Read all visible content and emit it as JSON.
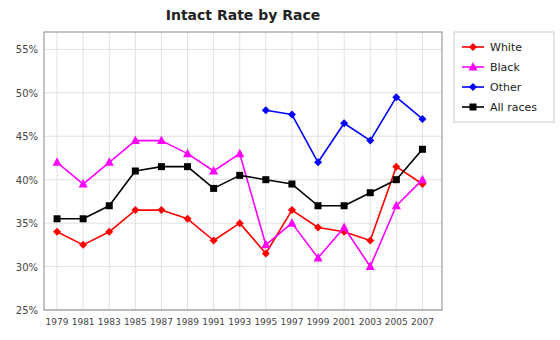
{
  "chart_data": {
    "type": "line",
    "title": "Intact Rate by Race",
    "x": [
      1979,
      1981,
      1983,
      1985,
      1987,
      1989,
      1991,
      1993,
      1995,
      1997,
      1999,
      2001,
      2003,
      2005,
      2007
    ],
    "series": [
      {
        "name": "White",
        "color": "#ff0000",
        "marker": "diamond",
        "values": [
          34.0,
          32.5,
          34.0,
          36.5,
          36.5,
          35.5,
          33.0,
          35.0,
          31.5,
          36.5,
          34.5,
          34.0,
          33.0,
          41.5,
          39.5
        ]
      },
      {
        "name": "Black",
        "color": "#ff00ff",
        "marker": "triangle",
        "values": [
          42.0,
          39.5,
          42.0,
          44.5,
          44.5,
          43.0,
          41.0,
          43.0,
          32.5,
          35.0,
          31.0,
          34.5,
          30.0,
          37.0,
          40.0
        ]
      },
      {
        "name": "Other",
        "color": "#0000ff",
        "marker": "diamond",
        "values": [
          null,
          null,
          null,
          null,
          null,
          null,
          null,
          null,
          48.0,
          47.5,
          42.0,
          46.5,
          44.5,
          49.5,
          47.0
        ]
      },
      {
        "name": "All races",
        "color": "#000000",
        "marker": "square",
        "values": [
          35.5,
          35.5,
          37.0,
          41.0,
          41.5,
          41.5,
          39.0,
          40.5,
          40.0,
          39.5,
          37.0,
          37.0,
          38.5,
          40.0,
          43.5
        ]
      }
    ],
    "xlim": [
      1978,
      2008.5
    ],
    "xticks": [
      1979,
      1981,
      1983,
      1985,
      1987,
      1989,
      1991,
      1993,
      1995,
      1997,
      1999,
      2001,
      2003,
      2005,
      2007
    ],
    "ylim": [
      25,
      57
    ],
    "yticks": [
      {
        "value": 25,
        "label": "25%"
      },
      {
        "value": 30,
        "label": "30%"
      },
      {
        "value": 35,
        "label": "35%"
      },
      {
        "value": 40,
        "label": "40%"
      },
      {
        "value": 45,
        "label": "45%"
      },
      {
        "value": 50,
        "label": "50%"
      },
      {
        "value": 55,
        "label": "55%"
      }
    ],
    "grid": true,
    "legend": "right"
  }
}
